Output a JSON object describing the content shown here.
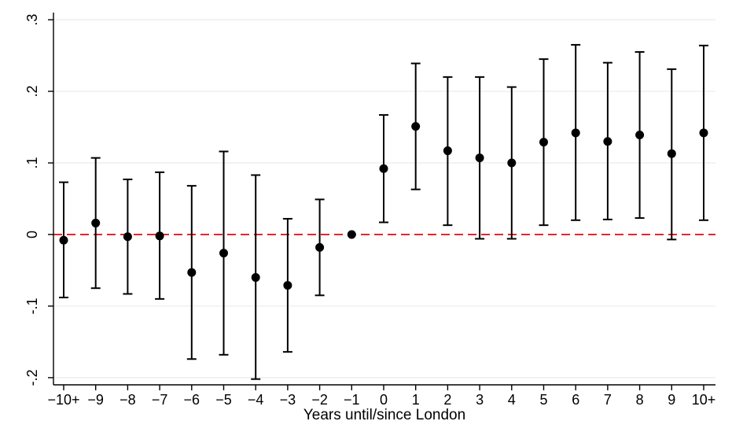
{
  "chart_data": {
    "type": "scatter",
    "style": "coefficient-plot-with-error-bars",
    "xlabel": "Years until/since London",
    "ylabel": "",
    "categories": [
      "−10+",
      "−9",
      "−8",
      "−7",
      "−6",
      "−5",
      "−4",
      "−3",
      "−2",
      "−1",
      "0",
      "1",
      "2",
      "3",
      "4",
      "5",
      "6",
      "7",
      "8",
      "9",
      "10+"
    ],
    "estimates": [
      -0.008,
      0.016,
      -0.003,
      -0.002,
      -0.053,
      -0.026,
      -0.06,
      -0.071,
      -0.018,
      0.0,
      0.092,
      0.151,
      0.117,
      0.107,
      0.1,
      0.129,
      0.142,
      0.13,
      0.139,
      0.113,
      0.142
    ],
    "ci_low": [
      -0.088,
      -0.075,
      -0.083,
      -0.09,
      -0.174,
      -0.168,
      -0.202,
      -0.164,
      -0.085,
      0.0,
      0.017,
      0.063,
      0.013,
      -0.006,
      -0.006,
      0.013,
      0.02,
      0.021,
      0.023,
      -0.007,
      0.02
    ],
    "ci_high": [
      0.073,
      0.107,
      0.077,
      0.087,
      0.068,
      0.116,
      0.083,
      0.022,
      0.049,
      0.0,
      0.167,
      0.239,
      0.22,
      0.22,
      0.206,
      0.245,
      0.265,
      0.24,
      0.255,
      0.231,
      0.264
    ],
    "ylim": [
      -0.21,
      0.31
    ],
    "yticks": [
      -0.2,
      -0.1,
      0,
      0.1,
      0.2,
      0.3
    ],
    "ytick_labels": [
      "-.2",
      "-.1",
      "0",
      ".1",
      ".2",
      ".3"
    ],
    "grid": true,
    "reference_line": {
      "y": 0,
      "style": "dashed",
      "color": "#e8262a"
    },
    "marker_color": "#000000",
    "gridline_color": "#e6ecef"
  }
}
